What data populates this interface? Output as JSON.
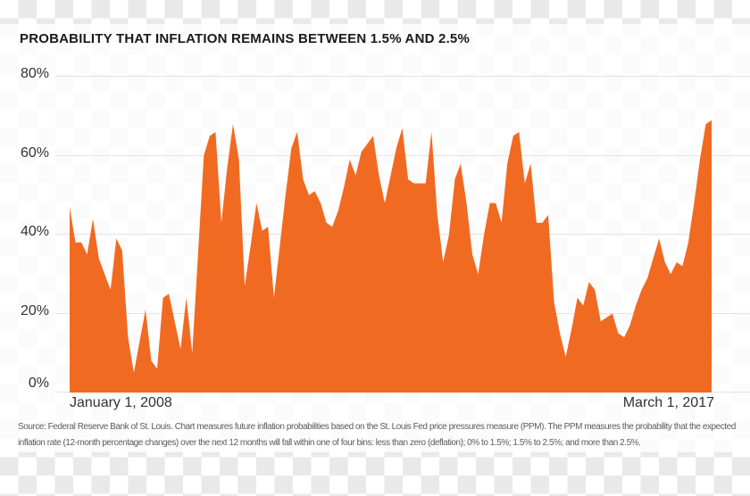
{
  "title": "PROBABILITY THAT INFLATION REMAINS BETWEEN 1.5% AND 2.5%",
  "colors": {
    "area": "#F16A22",
    "grid": "#e3e3e3",
    "checker": "#e9e9e9",
    "title_text": "#1a1a1a",
    "axis_text": "#333333",
    "source_text": "#5c5c5c"
  },
  "y_axis": {
    "tick_labels": [
      "80%",
      "60%",
      "40%",
      "20%",
      "0%"
    ]
  },
  "x_axis": {
    "start_label": "January 1, 2008",
    "end_label": "March 1, 2017"
  },
  "source_note": "Source: Federal Reserve Bank of St. Louis. Chart measures future inflation probabilities based on the St. Louis Fed price pressures measure (PPM). The PPM measures the probability that the expected inflation rate (12-month percentage changes) over the next 12 months will fall within one of four bins: less than zero (deflation); 0% to 1.5%; 1.5% to 2.5%; and more than 2.5%.",
  "chart_data": {
    "type": "area",
    "title": "PROBABILITY THAT INFLATION REMAINS BETWEEN 1.5% AND 2.5%",
    "x_start_label": "January 1, 2008",
    "x_end_label": "March 1, 2017",
    "frequency": "monthly",
    "unit": "percent",
    "ylim": [
      0,
      80
    ],
    "yticks": [
      0,
      20,
      40,
      60,
      80
    ],
    "grid": "horizontal",
    "legend": "none",
    "series": [
      {
        "name": "Probability that inflation remains between 1.5% and 2.5%",
        "color": "#F16A22",
        "values": [
          47,
          38,
          38,
          35,
          44,
          34,
          30,
          26,
          39,
          36,
          14,
          5,
          13,
          21,
          8,
          6,
          24,
          25,
          18,
          11,
          24,
          10,
          35,
          60,
          65,
          66,
          43,
          57,
          68,
          59,
          27,
          37,
          48,
          41,
          42,
          24,
          37,
          50,
          62,
          66,
          54,
          50,
          51,
          48,
          43,
          42,
          46,
          52,
          59,
          55,
          61,
          63,
          65,
          55,
          48,
          55,
          62,
          67,
          54,
          53,
          53,
          53,
          66,
          45,
          33,
          40,
          54,
          58,
          48,
          35,
          30,
          40,
          48,
          48,
          43,
          58,
          65,
          66,
          53,
          58,
          43,
          43,
          45,
          23,
          15,
          9,
          16,
          24,
          22,
          28,
          26,
          18,
          19,
          20,
          15,
          14,
          17,
          22,
          26,
          29,
          34,
          39,
          33,
          30,
          33,
          32,
          38,
          48,
          59,
          68,
          69
        ]
      }
    ]
  }
}
